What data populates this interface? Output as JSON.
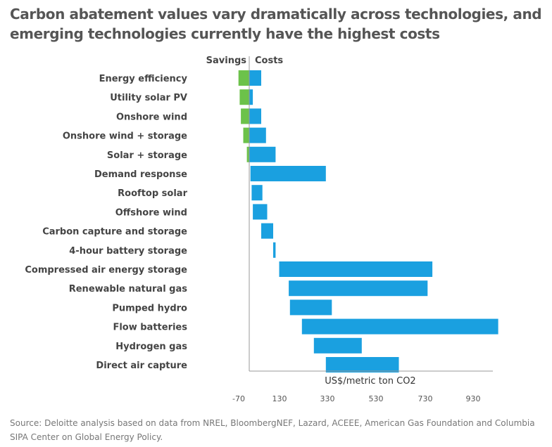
{
  "title": "Carbon abatement values vary dramatically across technologies, and emerging technologies currently have the highest costs",
  "source": "Source: Deloitte analysis based on data from NREL, BloombergNEF, Lazard, ACEEE, American Gas Foundation and Columbia SIPA Center on Global Energy Policy.",
  "colors": {
    "savings": "#6cc24a",
    "costs": "#1aa0e0",
    "axis": "#999999"
  },
  "chart_data": {
    "type": "bar",
    "orientation": "horizontal-floating",
    "header_left": "Savings",
    "header_right": "Costs",
    "xlabel": "US$/metric ton CO2",
    "xticks": [
      -70,
      130,
      330,
      530,
      730,
      930
    ],
    "xlim": [
      -110,
      1010
    ],
    "categories": [
      "Energy efficiency",
      "Utility solar PV",
      "Onshore wind",
      "Onshore wind + storage",
      "Solar + storage",
      "Demand response",
      "Rooftop solar",
      "Offshore wind",
      "Carbon capture and storage",
      "4-hour battery storage",
      "Compressed air energy storage",
      "Renewable natural gas",
      "Pumped hydro",
      "Flow batteries",
      "Hydrogen gas",
      "Direct air capture"
    ],
    "series": [
      {
        "name": "Savings",
        "ranges": [
          [
            -45,
            0
          ],
          [
            -40,
            0
          ],
          [
            -35,
            0
          ],
          [
            -25,
            0
          ],
          [
            -10,
            0
          ],
          null,
          null,
          null,
          null,
          null,
          null,
          null,
          null,
          null,
          null,
          null
        ]
      },
      {
        "name": "Costs",
        "ranges": [
          [
            0,
            50
          ],
          [
            0,
            15
          ],
          [
            0,
            50
          ],
          [
            0,
            70
          ],
          [
            0,
            110
          ],
          [
            5,
            320
          ],
          [
            10,
            55
          ],
          [
            15,
            75
          ],
          [
            50,
            100
          ],
          [
            100,
            110
          ],
          [
            125,
            765
          ],
          [
            165,
            745
          ],
          [
            170,
            345
          ],
          [
            220,
            1040
          ],
          [
            270,
            470
          ],
          [
            320,
            625
          ]
        ]
      }
    ]
  }
}
